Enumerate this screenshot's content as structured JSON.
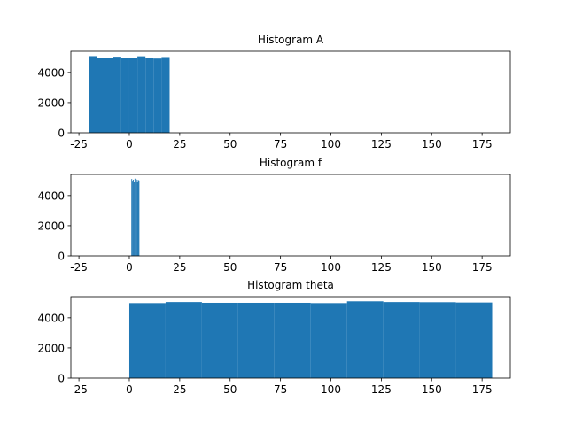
{
  "chart_data": [
    {
      "type": "bar",
      "title": "Histogram A",
      "xlabel": "",
      "ylabel": "",
      "xlim": [
        -29,
        189
      ],
      "ylim": [
        0,
        5400
      ],
      "xticks": [
        -25,
        0,
        25,
        50,
        75,
        100,
        125,
        150,
        175
      ],
      "yticks": [
        0,
        2000,
        4000
      ],
      "grid": false,
      "color": "#1f77b4",
      "bins": [
        {
          "x0": -20,
          "x1": -16,
          "count": 5080
        },
        {
          "x0": -16,
          "x1": -12,
          "count": 4960
        },
        {
          "x0": -12,
          "x1": -8,
          "count": 4960
        },
        {
          "x0": -8,
          "x1": -4,
          "count": 5040
        },
        {
          "x0": -4,
          "x1": 0,
          "count": 4970
        },
        {
          "x0": 0,
          "x1": 4,
          "count": 4970
        },
        {
          "x0": 4,
          "x1": 8,
          "count": 5070
        },
        {
          "x0": 8,
          "x1": 12,
          "count": 4960
        },
        {
          "x0": 12,
          "x1": 16,
          "count": 4920
        },
        {
          "x0": 16,
          "x1": 20,
          "count": 5020
        }
      ]
    },
    {
      "type": "bar",
      "title": "Histogram f",
      "xlabel": "",
      "ylabel": "",
      "xlim": [
        -29,
        189
      ],
      "ylim": [
        0,
        5400
      ],
      "xticks": [
        -25,
        0,
        25,
        50,
        75,
        100,
        125,
        150,
        175
      ],
      "yticks": [
        0,
        2000,
        4000
      ],
      "grid": false,
      "color": "#1f77b4",
      "bins": [
        {
          "x0": 1.0,
          "x1": 1.4,
          "count": 5100
        },
        {
          "x0": 1.4,
          "x1": 1.8,
          "count": 4980
        },
        {
          "x0": 1.8,
          "x1": 2.2,
          "count": 5050
        },
        {
          "x0": 2.2,
          "x1": 2.6,
          "count": 4900
        },
        {
          "x0": 2.6,
          "x1": 3.0,
          "count": 5120
        },
        {
          "x0": 3.0,
          "x1": 3.4,
          "count": 4950
        },
        {
          "x0": 3.4,
          "x1": 3.8,
          "count": 5060
        },
        {
          "x0": 3.8,
          "x1": 4.2,
          "count": 4890
        },
        {
          "x0": 4.2,
          "x1": 4.6,
          "count": 5040
        },
        {
          "x0": 4.6,
          "x1": 5.0,
          "count": 5000
        }
      ]
    },
    {
      "type": "bar",
      "title": "Histogram theta",
      "xlabel": "",
      "ylabel": "",
      "xlim": [
        -29,
        189
      ],
      "ylim": [
        0,
        5400
      ],
      "xticks": [
        -25,
        0,
        25,
        50,
        75,
        100,
        125,
        150,
        175
      ],
      "yticks": [
        0,
        2000,
        4000
      ],
      "grid": false,
      "color": "#1f77b4",
      "bins": [
        {
          "x0": 0,
          "x1": 18,
          "count": 4970
        },
        {
          "x0": 18,
          "x1": 36,
          "count": 5040
        },
        {
          "x0": 36,
          "x1": 54,
          "count": 4990
        },
        {
          "x0": 54,
          "x1": 72,
          "count": 4990
        },
        {
          "x0": 72,
          "x1": 90,
          "count": 4990
        },
        {
          "x0": 90,
          "x1": 108,
          "count": 4970
        },
        {
          "x0": 108,
          "x1": 126,
          "count": 5090
        },
        {
          "x0": 126,
          "x1": 144,
          "count": 5040
        },
        {
          "x0": 144,
          "x1": 162,
          "count": 5030
        },
        {
          "x0": 162,
          "x1": 180,
          "count": 5010
        }
      ]
    }
  ]
}
